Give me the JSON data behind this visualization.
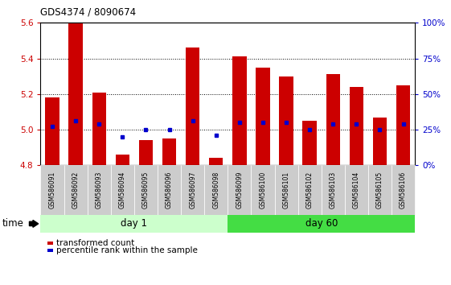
{
  "title": "GDS4374 / 8090674",
  "samples": [
    "GSM586091",
    "GSM586092",
    "GSM586093",
    "GSM586094",
    "GSM586095",
    "GSM586096",
    "GSM586097",
    "GSM586098",
    "GSM586099",
    "GSM586100",
    "GSM586101",
    "GSM586102",
    "GSM586103",
    "GSM586104",
    "GSM586105",
    "GSM586106"
  ],
  "bar_values": [
    5.18,
    5.6,
    5.21,
    4.86,
    4.94,
    4.95,
    5.46,
    4.84,
    5.41,
    5.35,
    5.3,
    5.05,
    5.31,
    5.24,
    5.07,
    5.25
  ],
  "bar_base": 4.8,
  "percentile_values": [
    5.02,
    5.05,
    5.03,
    4.96,
    5.0,
    5.0,
    5.05,
    4.97,
    5.04,
    5.04,
    5.04,
    5.0,
    5.03,
    5.03,
    5.0,
    5.03
  ],
  "ylim": [
    4.8,
    5.6
  ],
  "yticks": [
    4.8,
    5.0,
    5.2,
    5.4,
    5.6
  ],
  "right_yticks": [
    0,
    25,
    50,
    75,
    100
  ],
  "right_ylim": [
    0,
    100
  ],
  "bar_color": "#cc0000",
  "percentile_color": "#0000cc",
  "bar_width": 0.6,
  "day1_samples": 8,
  "day60_samples": 8,
  "day1_label": "day 1",
  "day60_label": "day 60",
  "day1_color": "#ccffcc",
  "day60_color": "#44dd44",
  "sample_bg_color": "#cccccc",
  "legend_red_label": "transformed count",
  "legend_blue_label": "percentile rank within the sample",
  "time_label": "time"
}
